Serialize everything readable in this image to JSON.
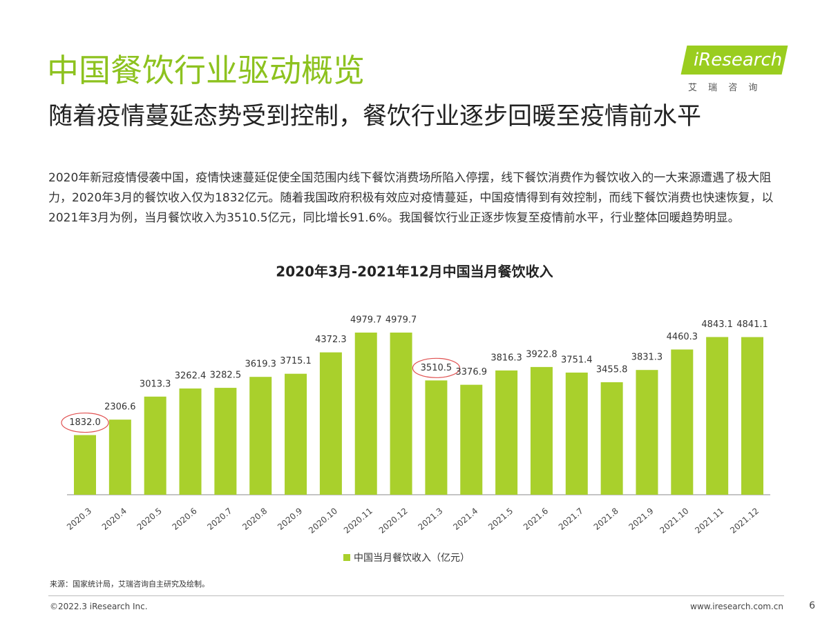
{
  "header": {
    "title": "中国餐饮行业驱动概览",
    "subtitle": "随着疫情蔓延态势受到控制，餐饮行业逐步回暖至疫情前水平",
    "paragraph": "2020年新冠疫情侵袭中国，疫情快速蔓延促使全国范围内线下餐饮消费场所陷入停摆，线下餐饮消费作为餐饮收入的一大来源遭遇了极大阻力，2020年3月的餐饮收入仅为1832亿元。随着我国政府积极有效应对疫情蔓延，中国疫情得到有效控制，而线下餐饮消费也快速恢复，以2021年3月为例，当月餐饮收入为3510.5亿元，同比增长91.6%。我国餐饮行业正逐步恢复至疫情前水平，行业整体回暖趋势明显。"
  },
  "logo": {
    "name": "iResearch",
    "tagline": "艾 瑞 咨 询"
  },
  "chart_data": {
    "type": "bar",
    "title": "2020年3月-2021年12月中国当月餐饮收入",
    "categories": [
      "2020.3",
      "2020.4",
      "2020.5",
      "2020.6",
      "2020.7",
      "2020.8",
      "2020.9",
      "2020.10",
      "2020.11",
      "2020.12",
      "2021.3",
      "2021.4",
      "2021.5",
      "2021.6",
      "2021.7",
      "2021.8",
      "2021.9",
      "2021.10",
      "2021.11",
      "2021.12"
    ],
    "series": [
      {
        "name": "中国当月餐饮收入（亿元）",
        "color": "#a9d02c",
        "values": [
          1832,
          2306.6,
          3013.3,
          3262.4,
          3282.5,
          3619.3,
          3715.1,
          4372.3,
          4979.7,
          4979.7,
          3510.5,
          3376.9,
          3816.3,
          3922.8,
          3751.4,
          3455.8,
          3831.3,
          4460.3,
          4843.1,
          4841.1
        ],
        "value_labels": [
          "1832.0",
          "2306.6",
          "3013.3",
          "3262.4",
          "3282.5",
          "3619.3",
          "3715.1",
          "4372.3",
          "4979.7",
          "4979.7",
          "3510.5",
          "3376.9",
          "3816.3",
          "3922.8",
          "3751.4",
          "3455.8",
          "3831.3",
          "4460.3",
          "4843.1",
          "4841.1"
        ]
      }
    ],
    "circled": [
      0,
      10
    ],
    "legend": "bottom"
  },
  "footer": {
    "source": "来源：国家统计局，艾瑞咨询自主研究及绘制。",
    "copyright": "©2022.3 iResearch Inc.",
    "website": "www.iresearch.com.cn",
    "page": "6"
  }
}
